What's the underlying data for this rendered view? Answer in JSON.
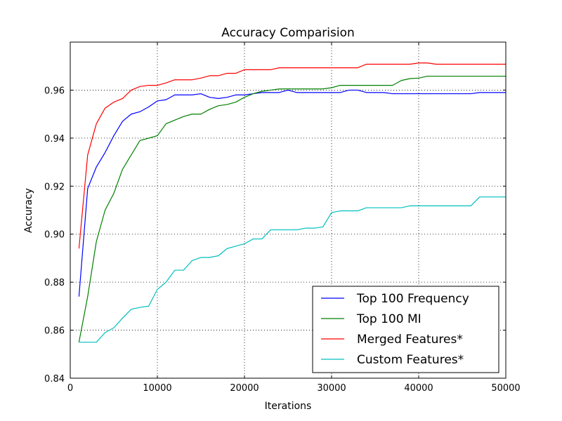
{
  "chart_data": {
    "type": "line",
    "title": "Accuracy Comparision",
    "xlabel": "Iterations",
    "ylabel": "Accuracy",
    "xlim": [
      0,
      50000
    ],
    "ylim": [
      0.84,
      0.98
    ],
    "x_ticks": [
      0,
      10000,
      20000,
      30000,
      40000,
      50000
    ],
    "x_tick_labels": [
      "0",
      "10000",
      "20000",
      "30000",
      "40000",
      "50000"
    ],
    "y_ticks": [
      0.84,
      0.86,
      0.88,
      0.9,
      0.92,
      0.94,
      0.96
    ],
    "y_tick_labels": [
      "0.84",
      "0.86",
      "0.88",
      "0.90",
      "0.92",
      "0.94",
      "0.96"
    ],
    "grid": true,
    "legend_position": "lower-right",
    "x": [
      1000,
      2000,
      3000,
      4000,
      5000,
      6000,
      7000,
      8000,
      9000,
      10000,
      11000,
      12000,
      13000,
      14000,
      15000,
      16000,
      17000,
      18000,
      19000,
      20000,
      21000,
      22000,
      23000,
      24000,
      25000,
      26000,
      27000,
      28000,
      29000,
      30000,
      31000,
      32000,
      33000,
      34000,
      35000,
      36000,
      37000,
      38000,
      39000,
      40000,
      41000,
      42000,
      43000,
      44000,
      45000,
      46000,
      47000,
      48000,
      49000,
      50000
    ],
    "series": [
      {
        "name": "Top 100 Frequency",
        "color": "#0000ff",
        "values": [
          0.874,
          0.919,
          0.928,
          0.934,
          0.941,
          0.947,
          0.95,
          0.951,
          0.953,
          0.9555,
          0.956,
          0.958,
          0.958,
          0.958,
          0.9585,
          0.957,
          0.9565,
          0.957,
          0.958,
          0.958,
          0.9585,
          0.959,
          0.959,
          0.959,
          0.96,
          0.959,
          0.959,
          0.959,
          0.959,
          0.959,
          0.959,
          0.96,
          0.96,
          0.959,
          0.959,
          0.959,
          0.9585,
          0.9585,
          0.9585,
          0.9585,
          0.9585,
          0.9585,
          0.9585,
          0.9585,
          0.9585,
          0.9585,
          0.959,
          0.959,
          0.959,
          0.959
        ]
      },
      {
        "name": "Top 100 MI",
        "color": "#008000",
        "values": [
          0.855,
          0.874,
          0.897,
          0.91,
          0.917,
          0.927,
          0.933,
          0.939,
          0.94,
          0.941,
          0.946,
          0.9475,
          0.949,
          0.95,
          0.95,
          0.952,
          0.9535,
          0.954,
          0.955,
          0.957,
          0.9585,
          0.9595,
          0.96,
          0.9605,
          0.9605,
          0.9605,
          0.9605,
          0.9605,
          0.9605,
          0.961,
          0.962,
          0.962,
          0.962,
          0.962,
          0.962,
          0.962,
          0.962,
          0.964,
          0.9648,
          0.965,
          0.9658,
          0.9658,
          0.9658,
          0.9658,
          0.9658,
          0.9658,
          0.9658,
          0.9658,
          0.9658,
          0.9658
        ]
      },
      {
        "name": "Merged Features*",
        "color": "#ff0000",
        "values": [
          0.894,
          0.933,
          0.946,
          0.9525,
          0.955,
          0.9565,
          0.96,
          0.9615,
          0.962,
          0.962,
          0.963,
          0.9643,
          0.9643,
          0.9643,
          0.965,
          0.966,
          0.966,
          0.967,
          0.967,
          0.9685,
          0.9685,
          0.9685,
          0.9685,
          0.9693,
          0.9693,
          0.9693,
          0.9693,
          0.9693,
          0.9693,
          0.9693,
          0.9693,
          0.9693,
          0.9693,
          0.9708,
          0.9708,
          0.9708,
          0.9708,
          0.9708,
          0.9708,
          0.9713,
          0.9713,
          0.9708,
          0.9708,
          0.9708,
          0.9708,
          0.9708,
          0.9708,
          0.9708,
          0.9708,
          0.9708
        ]
      },
      {
        "name": "Custom Features*",
        "color": "#00bfbf",
        "values": [
          0.855,
          0.855,
          0.855,
          0.859,
          0.861,
          0.865,
          0.8687,
          0.8695,
          0.87,
          0.877,
          0.88,
          0.885,
          0.885,
          0.889,
          0.8903,
          0.8903,
          0.891,
          0.894,
          0.895,
          0.896,
          0.898,
          0.898,
          0.9018,
          0.9018,
          0.9018,
          0.9018,
          0.9025,
          0.9025,
          0.903,
          0.909,
          0.9097,
          0.9097,
          0.9097,
          0.911,
          0.911,
          0.911,
          0.911,
          0.911,
          0.9118,
          0.9118,
          0.9118,
          0.9118,
          0.9118,
          0.9118,
          0.9118,
          0.9118,
          0.9155,
          0.9155,
          0.9155,
          0.9155
        ]
      }
    ]
  }
}
